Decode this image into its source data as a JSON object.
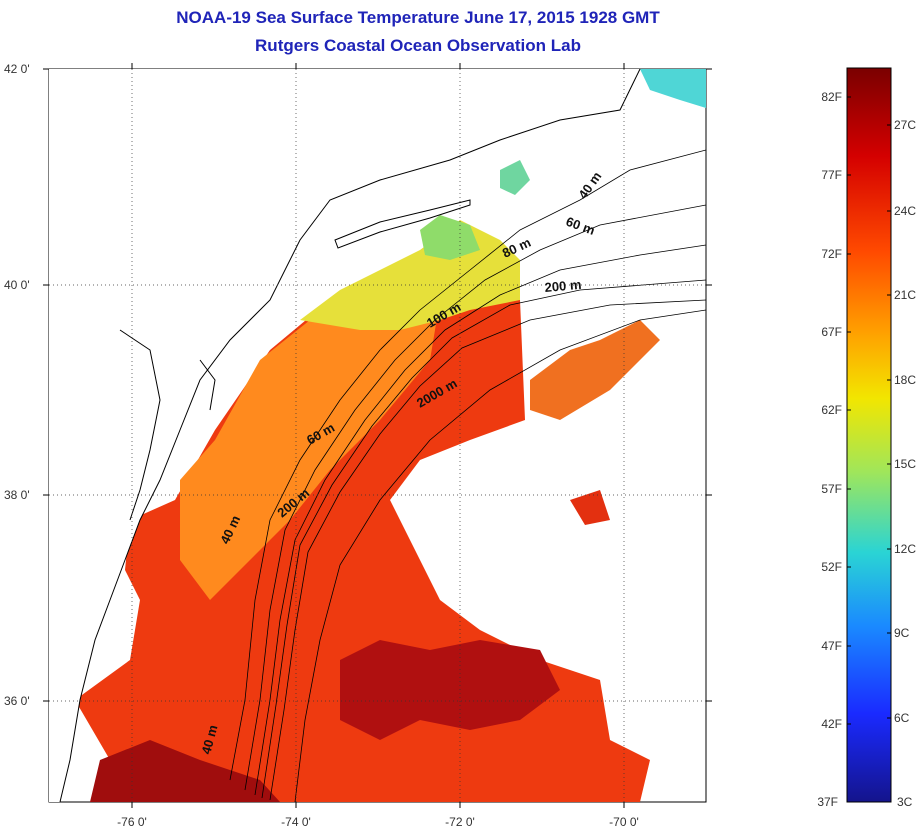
{
  "header": {
    "title": "NOAA-19 Sea Surface Temperature June 17, 2015 1928 GMT",
    "subtitle": "Rutgers Coastal Ocean Observation Lab"
  },
  "map": {
    "lat_ticks": [
      "42 0'",
      "40 0'",
      "38 0'",
      "36 0'"
    ],
    "lon_ticks": [
      "-76 0'",
      "-74 0'",
      "-72 0'",
      "-70 0'"
    ],
    "contour_labels": [
      "40 m",
      "60 m",
      "80 m",
      "200 m",
      "100 m",
      "2000 m",
      "60 m",
      "200 m",
      "40 m",
      "40 m"
    ]
  },
  "colorbar": {
    "fahrenheit": [
      "82F",
      "77F",
      "72F",
      "67F",
      "62F",
      "57F",
      "52F",
      "47F",
      "42F",
      "37F"
    ],
    "celsius": [
      "27C",
      "24C",
      "21C",
      "18C",
      "15C",
      "12C",
      "9C",
      "6C",
      "3C"
    ],
    "colors": [
      "#7a0000",
      "#d40000",
      "#ff4a00",
      "#ffa000",
      "#f2e600",
      "#a0e65a",
      "#2ad4d4",
      "#1a8aff",
      "#1a2aff",
      "#14148c"
    ]
  }
}
